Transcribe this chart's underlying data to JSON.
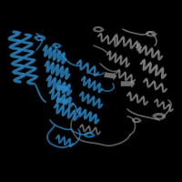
{
  "background_color": "#000000",
  "blue": "#2e86c1",
  "gray": "#909090",
  "dark_blue_edge": "#1a5276",
  "gray_edge": "#606060",
  "fig_width": 2.0,
  "fig_height": 2.0,
  "dpi": 100
}
